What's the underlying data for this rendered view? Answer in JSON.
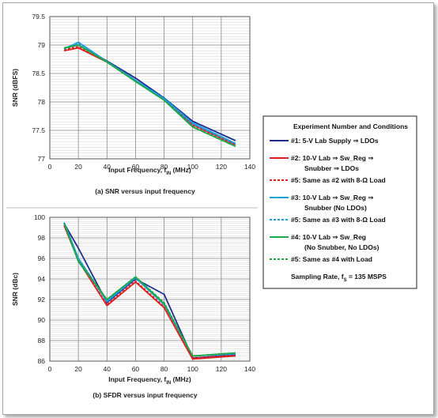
{
  "legend": {
    "title": "Experiment Number and Conditions",
    "entries": [
      {
        "lines": [
          "#1: 5-V Lab Supply ⇒ LDOs"
        ],
        "color": "#1f2f8f",
        "dashed": false
      },
      {
        "lines": [
          "#2: 10-V Lab ⇒ Sw_Reg ⇒",
          "Snubber ⇒ LDOs"
        ],
        "color": "#e02020",
        "dashed": false
      },
      {
        "lines": [
          "#5: Same as #2 with 8-Ω Load"
        ],
        "color": "#e02020",
        "dashed": true
      },
      {
        "lines": [
          "#3: 10-V Lab ⇒ Sw_Reg ⇒",
          "Snubber (No LDOs)"
        ],
        "color": "#1aa0e0",
        "dashed": false
      },
      {
        "lines": [
          "#5: Same as #3 with 8-Ω Load"
        ],
        "color": "#1aa0e0",
        "dashed": true
      },
      {
        "lines": [
          "#4: 10-V Lab ⇒ Sw_Reg",
          "(No Snubber, No LDOs)"
        ],
        "color": "#1fa84a",
        "dashed": false
      },
      {
        "lines": [
          "#5: Same as #4 with Load"
        ],
        "color": "#1fa84a",
        "dashed": true
      }
    ],
    "footer": "Sampling Rate, f",
    "footer_sub": "S",
    "footer_rest": " = 135 MSPS"
  },
  "chart_data": [
    {
      "type": "line",
      "caption": "(a) SNR versus input frequency",
      "xlabel": "Input Frequency, f",
      "xlabel_sub": "IN",
      "xlabel_rest": " (MHz)",
      "ylabel": "SNR (dBFS)",
      "xlim": [
        0,
        140
      ],
      "ylim": [
        77,
        79.5
      ],
      "xticks": [
        "0",
        "20",
        "40",
        "60",
        "80",
        "100",
        "120",
        "140"
      ],
      "yticks": [
        "77",
        "77.5",
        "78",
        "78.5",
        "79",
        "79.5"
      ],
      "x": [
        10,
        20,
        40,
        60,
        80,
        100,
        130
      ],
      "series": [
        {
          "legend_index": 0,
          "color": "#1f2f8f",
          "dashed": false,
          "values": [
            78.95,
            79.0,
            78.72,
            78.42,
            78.07,
            77.66,
            77.32
          ]
        },
        {
          "legend_index": 1,
          "color": "#e02020",
          "dashed": false,
          "values": [
            78.9,
            78.95,
            78.7,
            78.38,
            78.05,
            77.6,
            77.25
          ]
        },
        {
          "legend_index": 2,
          "color": "#e02020",
          "dashed": true,
          "values": [
            78.92,
            78.97,
            78.7,
            78.37,
            78.04,
            77.59,
            77.24
          ]
        },
        {
          "legend_index": 3,
          "color": "#1aa0e0",
          "dashed": false,
          "values": [
            78.93,
            79.05,
            78.71,
            78.38,
            78.06,
            77.63,
            77.27
          ]
        },
        {
          "legend_index": 4,
          "color": "#1aa0e0",
          "dashed": true,
          "values": [
            78.93,
            79.03,
            78.7,
            78.37,
            78.05,
            77.61,
            77.26
          ]
        },
        {
          "legend_index": 5,
          "color": "#1fa84a",
          "dashed": false,
          "values": [
            78.95,
            79.0,
            78.7,
            78.36,
            78.03,
            77.56,
            77.22
          ]
        },
        {
          "legend_index": 6,
          "color": "#1fa84a",
          "dashed": true,
          "values": [
            78.94,
            79.0,
            78.71,
            78.36,
            78.03,
            77.56,
            77.22
          ]
        }
      ]
    },
    {
      "type": "line",
      "caption": "(b) SFDR versus input frequency",
      "xlabel": "Input Frequency, f",
      "xlabel_sub": "IN",
      "xlabel_rest": " (MHz)",
      "ylabel": "SNR (dBc)",
      "xlim": [
        0,
        140
      ],
      "ylim": [
        86,
        100
      ],
      "xticks": [
        "0",
        "20",
        "40",
        "60",
        "80",
        "100",
        "120",
        "140"
      ],
      "yticks": [
        "86",
        "88",
        "90",
        "92",
        "94",
        "96",
        "98",
        "100"
      ],
      "x": [
        10,
        20,
        40,
        60,
        80,
        100,
        130
      ],
      "series": [
        {
          "legend_index": 0,
          "color": "#1f2f8f",
          "dashed": false,
          "values": [
            99.4,
            97.0,
            91.7,
            94.0,
            92.5,
            86.3,
            86.6
          ]
        },
        {
          "legend_index": 1,
          "color": "#e02020",
          "dashed": false,
          "values": [
            99.2,
            95.8,
            91.4,
            93.7,
            91.2,
            86.2,
            86.5
          ]
        },
        {
          "legend_index": 2,
          "color": "#e02020",
          "dashed": true,
          "values": [
            99.2,
            95.8,
            91.5,
            93.8,
            91.3,
            86.3,
            86.6
          ]
        },
        {
          "legend_index": 3,
          "color": "#1aa0e0",
          "dashed": false,
          "values": [
            99.5,
            96.0,
            91.8,
            94.1,
            91.5,
            86.5,
            86.7
          ]
        },
        {
          "legend_index": 4,
          "color": "#1aa0e0",
          "dashed": true,
          "values": [
            99.4,
            96.0,
            91.9,
            94.1,
            91.6,
            86.5,
            86.7
          ]
        },
        {
          "legend_index": 5,
          "color": "#1fa84a",
          "dashed": false,
          "values": [
            99.4,
            95.7,
            92.0,
            94.2,
            91.6,
            86.5,
            86.8
          ]
        },
        {
          "legend_index": 6,
          "color": "#1fa84a",
          "dashed": true,
          "values": [
            99.4,
            95.8,
            92.0,
            94.2,
            91.7,
            86.5,
            86.8
          ]
        }
      ]
    }
  ]
}
